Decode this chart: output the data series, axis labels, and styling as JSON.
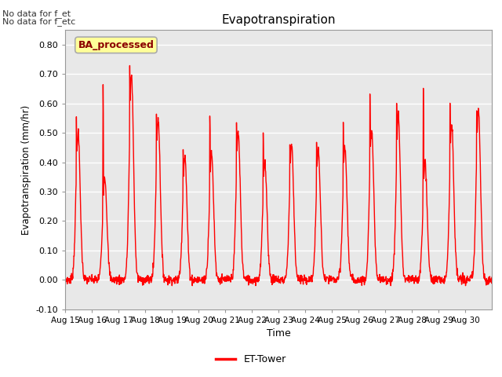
{
  "title": "Evapotranspiration",
  "xlabel": "Time",
  "ylabel": "Evapotranspiration (mm/hr)",
  "ylim": [
    -0.1,
    0.85
  ],
  "yticks": [
    -0.1,
    0.0,
    0.1,
    0.2,
    0.3,
    0.4,
    0.5,
    0.6,
    0.7,
    0.8
  ],
  "line_color": "#FF0000",
  "line_width": 1.0,
  "plot_bg_color": "#E8E8E8",
  "text_annotations": [
    "No data for f_et",
    "No data for f_etc"
  ],
  "legend_label": "ET-Tower",
  "watermark_text": "BA_processed",
  "watermark_color": "#8B0000",
  "watermark_bg": "#FFFF99",
  "n_days": 16,
  "start_day": 15,
  "xtick_labels": [
    "Aug 15",
    "Aug 16",
    "Aug 17",
    "Aug 18",
    "Aug 19",
    "Aug 20",
    "Aug 21",
    "Aug 22",
    "Aug 23",
    "Aug 24",
    "Aug 25",
    "Aug 26",
    "Aug 27",
    "Aug 28",
    "Aug 29",
    "Aug 30"
  ],
  "daily_peaks": [
    0.57,
    0.69,
    0.75,
    0.58,
    0.47,
    0.59,
    0.56,
    0.51,
    0.48,
    0.48,
    0.55,
    0.66,
    0.63,
    0.67,
    0.63,
    0.61
  ],
  "daily_secondary_peaks": [
    0.5,
    0.35,
    0.7,
    0.55,
    0.42,
    0.43,
    0.5,
    0.4,
    0.46,
    0.44,
    0.45,
    0.51,
    0.56,
    0.4,
    0.53,
    0.58
  ],
  "n_per_day": 96
}
